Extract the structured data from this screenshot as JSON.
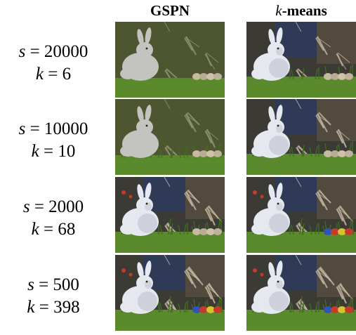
{
  "columns": [
    {
      "name": "gspn",
      "label": "GSPN"
    },
    {
      "name": "kmeans",
      "label_var": "k",
      "label_rest": "-means"
    }
  ],
  "rows": [
    {
      "s_label": "s",
      "s_value": "20000",
      "k_label": "k",
      "k_value": "6",
      "detail": 1
    },
    {
      "s_label": "s",
      "s_value": "10000",
      "k_label": "k",
      "k_value": "10",
      "detail": 2
    },
    {
      "s_label": "s",
      "s_value": "2000",
      "k_label": "k",
      "k_value": "68",
      "detail": 3
    },
    {
      "s_label": "s",
      "s_value": "500",
      "k_label": "k",
      "k_value": "398",
      "detail": 4
    }
  ],
  "colors": {
    "olive_bg": "#4d5630",
    "dark_bg": "#3b3a35",
    "grass": "#5a8a2c",
    "rabbit_flat": "#c3c3bf",
    "rabbit_light": "#e6e8ef",
    "sky_blue": "#283a6e",
    "egg_red": "#c63a2a",
    "egg_blue": "#2f54b8",
    "egg_yellow": "#d9c230"
  }
}
